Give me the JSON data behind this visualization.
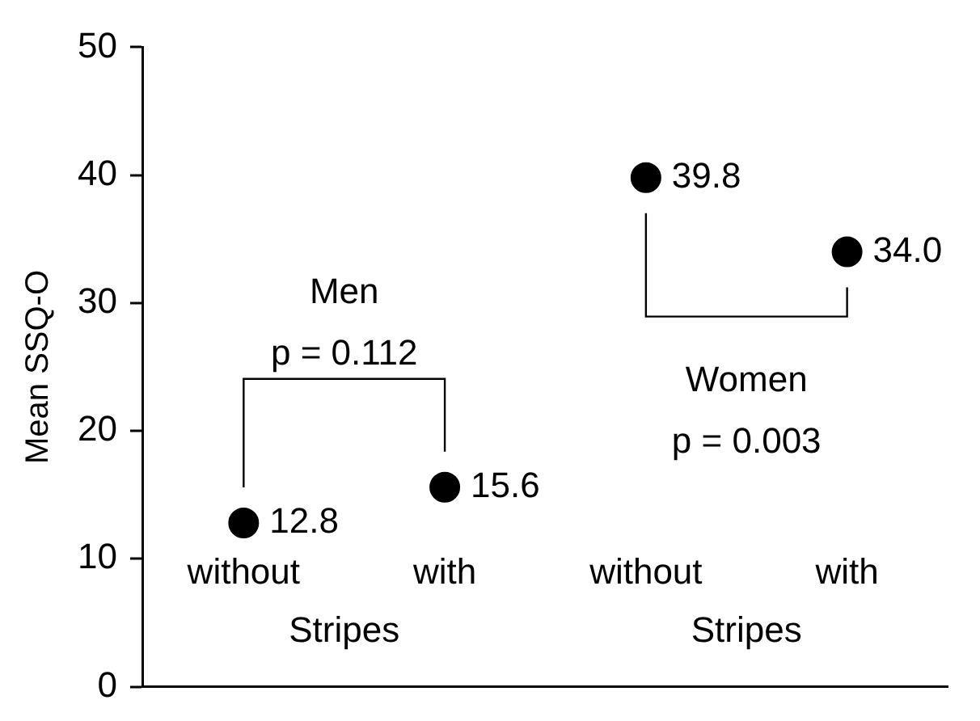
{
  "chart_data": {
    "type": "scatter",
    "ylabel": "Mean SSQ-O",
    "categories": [
      "without",
      "with",
      "without",
      "with"
    ],
    "values": [
      12.8,
      15.6,
      39.8,
      34.0
    ],
    "value_labels": [
      "12.8",
      "15.6",
      "39.8",
      "34.0"
    ],
    "color": "#000000",
    "marker": "circle",
    "ylim": [
      0,
      50
    ],
    "yticks": [
      0,
      10,
      20,
      30,
      40,
      50
    ],
    "grid": false,
    "legend": false,
    "annotations": [
      "Stripes",
      "Stripes",
      "Men",
      "p = 0.112",
      "Women",
      "p = 0.003"
    ]
  }
}
